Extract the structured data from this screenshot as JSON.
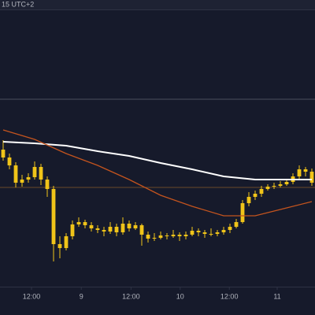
{
  "chart_data": {
    "type": "candlestick",
    "subtitle": "15 UTC+2",
    "color": "#f0c419",
    "x": [
      0,
      1,
      2,
      3,
      4,
      5,
      6,
      7,
      8,
      9,
      10,
      11,
      12,
      13,
      14,
      15,
      16,
      17,
      18,
      19,
      20,
      21,
      22,
      23,
      24,
      25,
      26,
      27,
      28,
      29,
      30,
      31,
      32,
      33,
      34,
      35,
      36,
      37,
      38,
      39,
      40,
      41,
      42,
      43,
      44,
      45,
      46,
      47,
      48,
      49
    ],
    "candles": [
      [
        210,
        222,
        196,
        200
      ],
      [
        200,
        205,
        185,
        190
      ],
      [
        190,
        194,
        162,
        168
      ],
      [
        168,
        178,
        163,
        172
      ],
      [
        172,
        180,
        168,
        175
      ],
      [
        175,
        195,
        172,
        188
      ],
      [
        188,
        192,
        165,
        172
      ],
      [
        172,
        176,
        150,
        160
      ],
      [
        160,
        164,
        68,
        90
      ],
      [
        90,
        100,
        72,
        85
      ],
      [
        85,
        104,
        82,
        100
      ],
      [
        100,
        120,
        96,
        115
      ],
      [
        115,
        124,
        112,
        118
      ],
      [
        118,
        121,
        110,
        114
      ],
      [
        114,
        118,
        106,
        110
      ],
      [
        110,
        114,
        104,
        108
      ],
      [
        108,
        112,
        100,
        106
      ],
      [
        106,
        118,
        103,
        112
      ],
      [
        112,
        116,
        100,
        105
      ],
      [
        105,
        124,
        102,
        116
      ],
      [
        116,
        120,
        106,
        110
      ],
      [
        110,
        118,
        108,
        114
      ],
      [
        114,
        116,
        88,
        102
      ],
      [
        102,
        106,
        92,
        97
      ],
      [
        97,
        104,
        94,
        98
      ],
      [
        98,
        106,
        96,
        101
      ],
      [
        101,
        104,
        96,
        100
      ],
      [
        100,
        108,
        98,
        102
      ],
      [
        102,
        105,
        94,
        100
      ],
      [
        100,
        106,
        96,
        102
      ],
      [
        102,
        112,
        100,
        107
      ],
      [
        107,
        110,
        100,
        105
      ],
      [
        105,
        108,
        98,
        103
      ],
      [
        103,
        110,
        100,
        103
      ],
      [
        103,
        108,
        100,
        105
      ],
      [
        105,
        112,
        102,
        108
      ],
      [
        108,
        116,
        104,
        112
      ],
      [
        112,
        122,
        110,
        118
      ],
      [
        118,
        146,
        116,
        142
      ],
      [
        142,
        156,
        138,
        150
      ],
      [
        150,
        158,
        146,
        154
      ],
      [
        154,
        164,
        150,
        160
      ],
      [
        160,
        166,
        158,
        163
      ],
      [
        163,
        168,
        160,
        164
      ],
      [
        164,
        170,
        162,
        166
      ],
      [
        166,
        172,
        164,
        169
      ],
      [
        169,
        180,
        166,
        176
      ],
      [
        176,
        190,
        172,
        185
      ],
      [
        185,
        188,
        176,
        182
      ],
      [
        182,
        186,
        164,
        168
      ]
    ],
    "series": [
      {
        "color": "#ffffff",
        "x": [
          0,
          5,
          10,
          15,
          20,
          25,
          30,
          35,
          40,
          45,
          49
        ],
        "values": [
          220,
          218,
          215,
          208,
          202,
          193,
          185,
          176,
          172,
          172,
          172
        ]
      },
      {
        "color": "#c4541e",
        "x": [
          0,
          5,
          10,
          15,
          20,
          25,
          30,
          35,
          40,
          45,
          49
        ],
        "values": [
          235,
          223,
          205,
          190,
          172,
          152,
          138,
          126,
          126,
          136,
          144
        ]
      }
    ],
    "levels": [
      {
        "value": 274,
        "color": "#4a4e5e"
      },
      {
        "value": 162,
        "color": "#6b4a2a"
      }
    ],
    "xlim": [
      -0.5,
      49.5
    ],
    "ylim": [
      0,
      400
    ],
    "xticks": [
      {
        "value": 4.5,
        "label": "12:00"
      },
      {
        "value": 12.4,
        "label": "9"
      },
      {
        "value": 20.3,
        "label": "12:00"
      },
      {
        "value": 28.1,
        "label": "10"
      },
      {
        "value": 35.9,
        "label": "12:00"
      },
      {
        "value": 43.5,
        "label": "11"
      }
    ]
  }
}
